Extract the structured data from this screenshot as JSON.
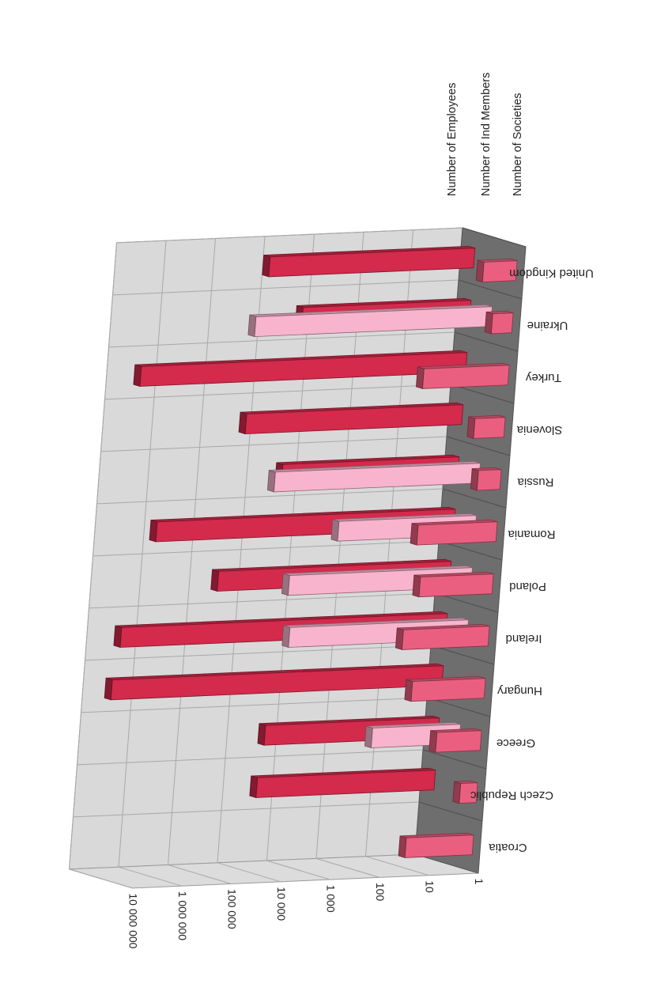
{
  "chart_data": {
    "type": "bar",
    "style": "3d-horizontal-bar-rotated",
    "log_scale": true,
    "value_ticks": [
      "1",
      "10",
      "100",
      "1 000",
      "10 000",
      "100 000",
      "1 000 000",
      "10 000 000"
    ],
    "ylim": [
      1,
      10000000
    ],
    "categories": [
      "Croatia",
      "Czech Republic",
      "Greece",
      "Hungary",
      "Ireland",
      "Poland",
      "Romania",
      "Russia",
      "Slovenia",
      "Turkey",
      "Ukraine",
      "United Kingdom"
    ],
    "series": [
      {
        "name": "Number of Societies",
        "values": [
          23,
          2.2,
          8,
          30,
          55,
          30,
          40,
          2.9,
          4.1,
          53,
          2.6,
          4.7
        ]
      },
      {
        "name": "Number of Ind Members",
        "values": [
          null,
          null,
          60,
          null,
          4100,
          5000,
          600,
          14000,
          null,
          null,
          60000,
          null
        ]
      },
      {
        "name": "Number of Employees",
        "values": [
          null,
          4000,
          3300,
          5000000,
          3900000,
          51000,
          1070000,
          3700,
          24000,
          3900000,
          2500,
          14000
        ]
      }
    ],
    "legend_position": "top-right",
    "grid": true,
    "colors": {
      "employees": "#d42a4c",
      "members": "#f7b4cc",
      "societies": "#ea5f7f",
      "wall": "#d9d9d9",
      "floor": "#6e6e6e",
      "grid": "#a8a8a8"
    }
  }
}
